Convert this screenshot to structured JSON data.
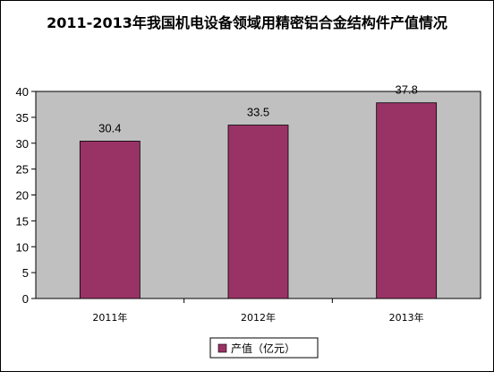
{
  "chart_data": {
    "type": "bar",
    "title": "2011-2013年我国机电设备领域用精密铝合金结构件产值情况",
    "categories": [
      "2011年",
      "2012年",
      "2013年"
    ],
    "series": [
      {
        "name": "产值（亿元）",
        "values": [
          30.4,
          33.5,
          37.8
        ]
      }
    ],
    "data_labels": [
      "30.4",
      "33.5",
      "37.8"
    ],
    "xlabel": "",
    "ylabel": "",
    "ylim": [
      0,
      40
    ],
    "yticks": [
      0,
      5,
      10,
      15,
      20,
      25,
      30,
      35,
      40
    ],
    "ytick_labels": [
      "0",
      "5",
      "10",
      "15",
      "20",
      "25",
      "30",
      "35",
      "40"
    ],
    "grid": false,
    "legend_position": "bottom",
    "colors": {
      "bar": "#993366",
      "plot_background": "#c0c0c0"
    }
  }
}
